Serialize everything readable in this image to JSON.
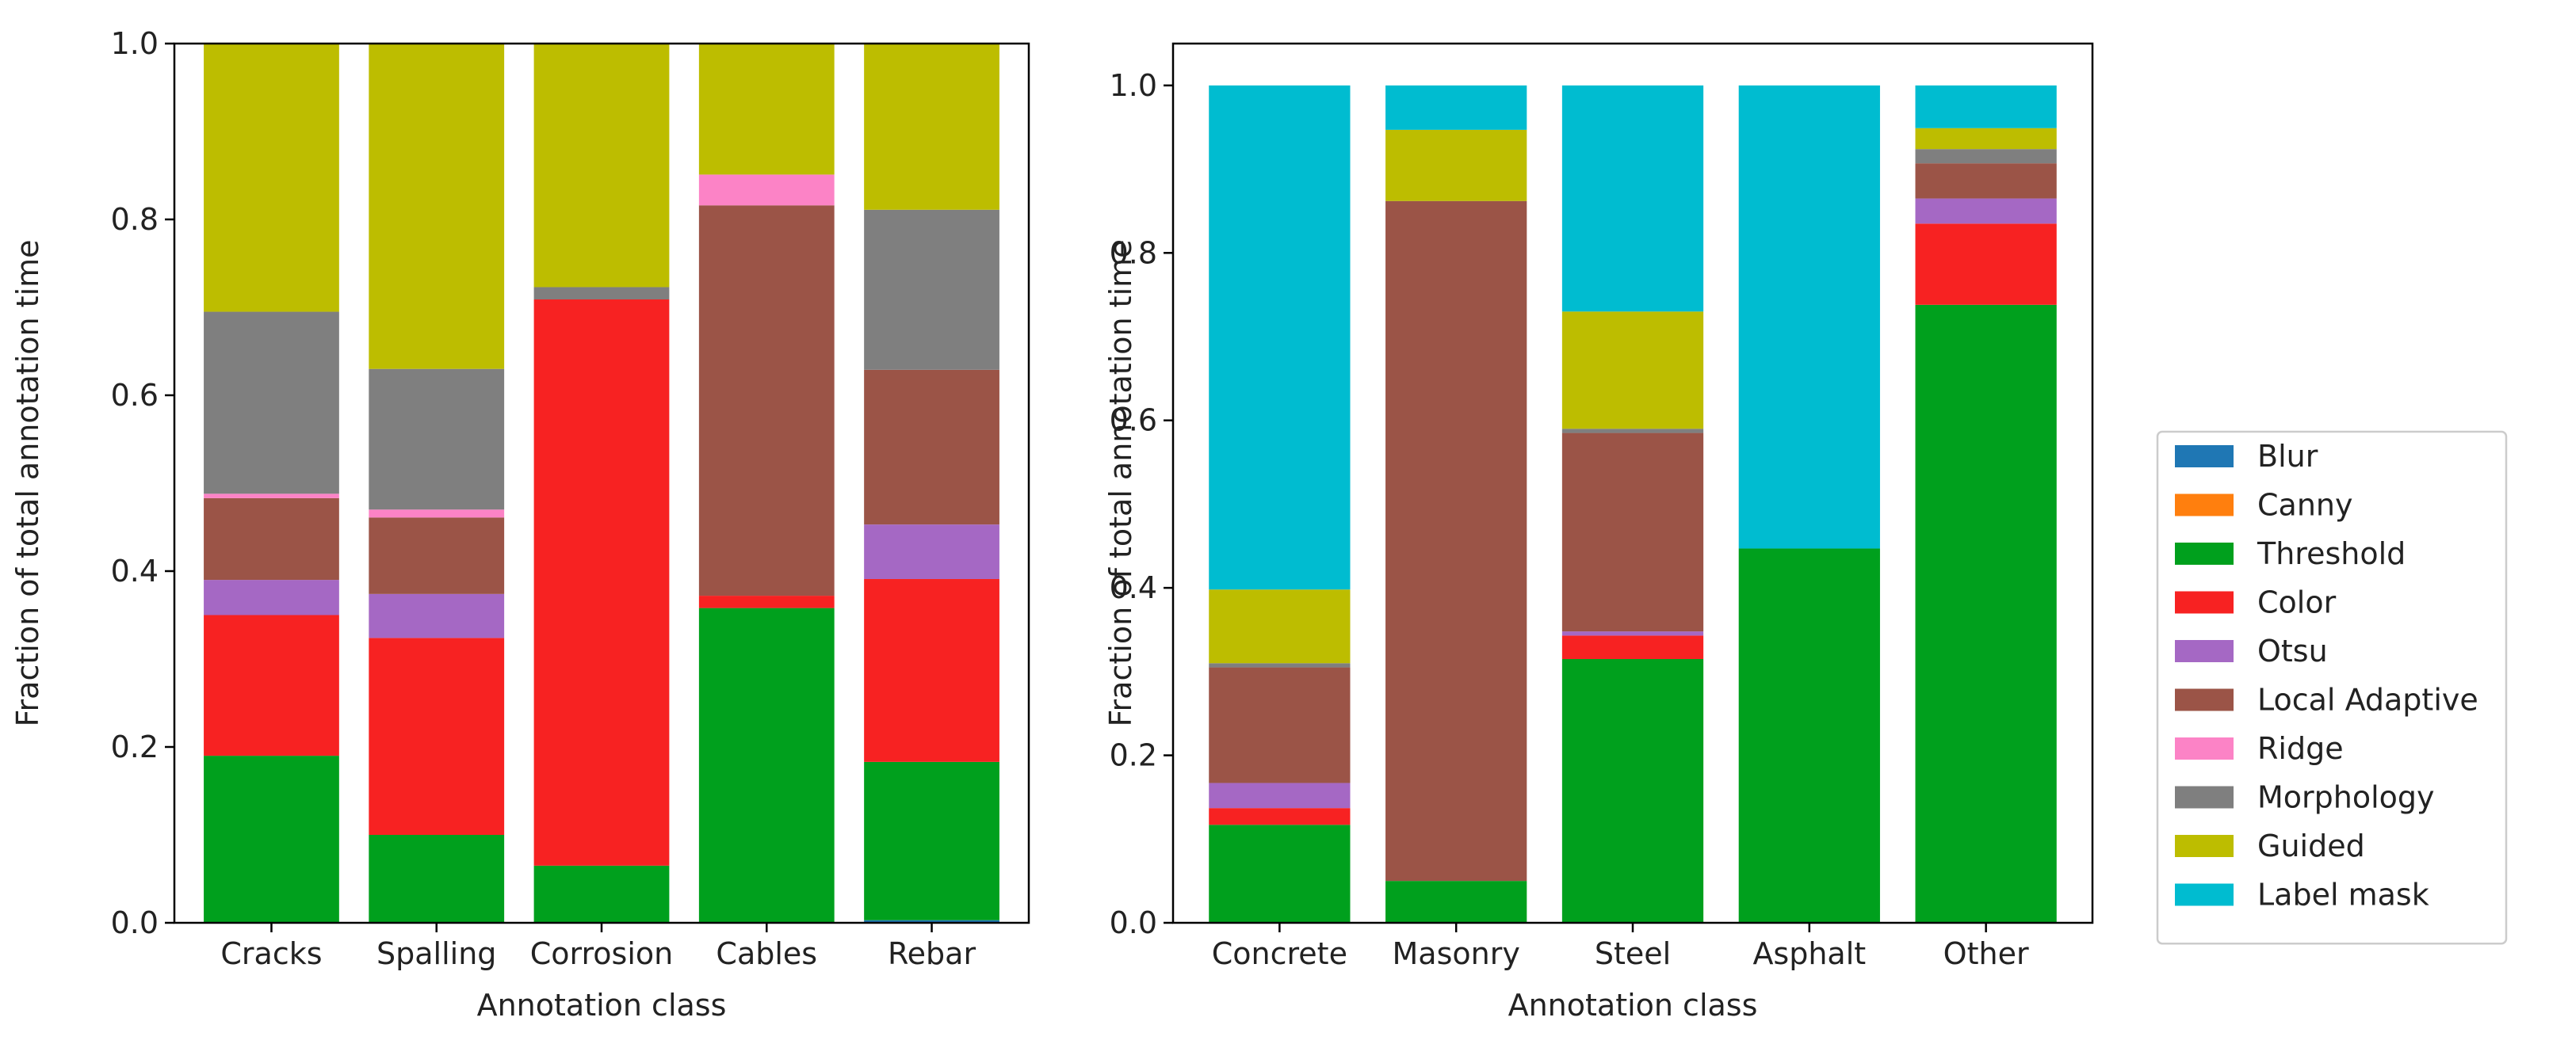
{
  "legend_entries": [
    {
      "key": "blur",
      "label": "Blur",
      "color": "#1f77b4"
    },
    {
      "key": "canny",
      "label": "Canny",
      "color": "#ff7f0e"
    },
    {
      "key": "threshold",
      "label": "Threshold",
      "color": "#00a01d"
    },
    {
      "key": "color",
      "label": "Color",
      "color": "#f72222"
    },
    {
      "key": "otsu",
      "label": "Otsu",
      "color": "#a568c4"
    },
    {
      "key": "local_adaptive",
      "label": "Local Adaptive",
      "color": "#9b5447"
    },
    {
      "key": "ridge",
      "label": "Ridge",
      "color": "#fc83c6"
    },
    {
      "key": "morphology",
      "label": "Morphology",
      "color": "#7f7f7f"
    },
    {
      "key": "guided",
      "label": "Guided",
      "color": "#bdbd00"
    },
    {
      "key": "label_mask",
      "label": "Label mask",
      "color": "#00bcd0"
    }
  ],
  "chart_data": [
    {
      "type": "bar",
      "stacked": true,
      "title": "",
      "xlabel": "Annotation class",
      "ylabel": "Fraction of total annotation time",
      "ylim": [
        0,
        1.0
      ],
      "yticks": [
        "0.0",
        "0.2",
        "0.4",
        "0.6",
        "0.8",
        "1.0"
      ],
      "categories": [
        "Cracks",
        "Spalling",
        "Corrosion",
        "Cables",
        "Rebar"
      ],
      "series": [
        {
          "name": "Blur",
          "values": [
            0,
            0,
            0,
            0,
            0.003
          ]
        },
        {
          "name": "Canny",
          "values": [
            0,
            0,
            0,
            0,
            0
          ]
        },
        {
          "name": "Threshold",
          "values": [
            0.19,
            0.1,
            0.065,
            0.358,
            0.18
          ]
        },
        {
          "name": "Color",
          "values": [
            0.16,
            0.224,
            0.644,
            0.014,
            0.208
          ]
        },
        {
          "name": "Otsu",
          "values": [
            0.04,
            0.05,
            0,
            0,
            0.062
          ]
        },
        {
          "name": "Local Adaptive",
          "values": [
            0.093,
            0.087,
            0,
            0.444,
            0.176
          ]
        },
        {
          "name": "Ridge",
          "values": [
            0.005,
            0.009,
            0,
            0.035,
            0
          ]
        },
        {
          "name": "Morphology",
          "values": [
            0.207,
            0.16,
            0.014,
            0,
            0.182
          ]
        },
        {
          "name": "Guided",
          "values": [
            0.305,
            0.37,
            0.277,
            0.149,
            0.189
          ]
        },
        {
          "name": "Label mask",
          "values": [
            0,
            0,
            0,
            0,
            0
          ]
        }
      ]
    },
    {
      "type": "bar",
      "stacked": true,
      "title": "",
      "xlabel": "Annotation class",
      "ylabel": "Fraction of total annotation time",
      "ylim": [
        0,
        1.05
      ],
      "yticks": [
        "0.0",
        "0.2",
        "0.4",
        "0.6",
        "0.8",
        "1.0"
      ],
      "categories": [
        "Concrete",
        "Masonry",
        "Steel",
        "Asphalt",
        "Other"
      ],
      "series": [
        {
          "name": "Blur",
          "values": [
            0,
            0,
            0,
            0,
            0
          ]
        },
        {
          "name": "Canny",
          "values": [
            0,
            0,
            0,
            0,
            0
          ]
        },
        {
          "name": "Threshold",
          "values": [
            0.117,
            0.05,
            0.315,
            0.447,
            0.738
          ]
        },
        {
          "name": "Color",
          "values": [
            0.02,
            0,
            0.028,
            0,
            0.097
          ]
        },
        {
          "name": "Otsu",
          "values": [
            0.03,
            0,
            0.005,
            0,
            0.03
          ]
        },
        {
          "name": "Local Adaptive",
          "values": [
            0.138,
            0.812,
            0.237,
            0,
            0.042
          ]
        },
        {
          "name": "Ridge",
          "values": [
            0,
            0,
            0,
            0,
            0
          ]
        },
        {
          "name": "Morphology",
          "values": [
            0.005,
            0,
            0.005,
            0,
            0.017
          ]
        },
        {
          "name": "Guided",
          "values": [
            0.088,
            0.085,
            0.14,
            0,
            0.025
          ]
        },
        {
          "name": "Label mask",
          "values": [
            0.602,
            0.053,
            0.27,
            0.553,
            0.051
          ]
        }
      ]
    }
  ]
}
